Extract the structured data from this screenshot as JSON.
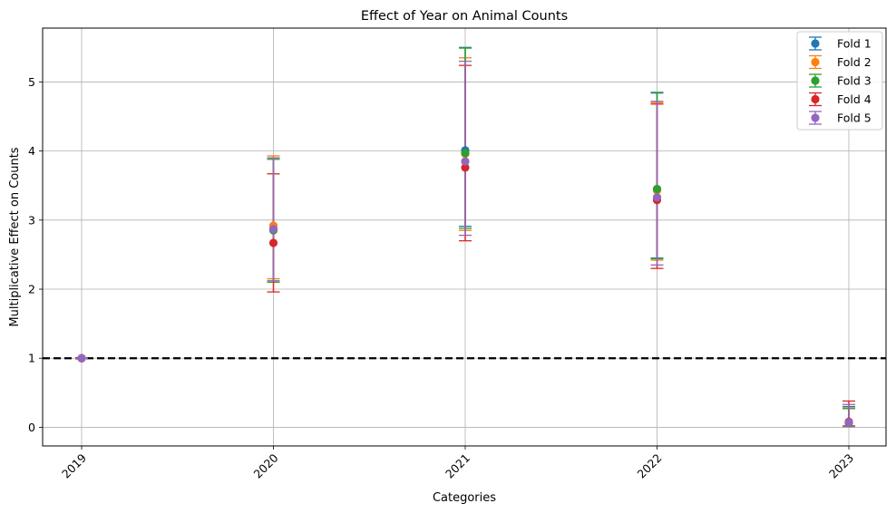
{
  "chart_data": {
    "type": "scatter",
    "title": "Effect of Year on Animal Counts",
    "xlabel": "Categories",
    "ylabel": "Multiplicative Effect on Counts",
    "categories": [
      "2019",
      "2020",
      "2021",
      "2022",
      "2023"
    ],
    "ylim": [
      -0.27,
      5.78
    ],
    "yticks": [
      0,
      1,
      2,
      3,
      4,
      5
    ],
    "grid": true,
    "legend_position": "top-right",
    "reference_line": {
      "y": 1,
      "style": "dashed",
      "color": "#000000"
    },
    "series": [
      {
        "name": "Fold 1",
        "color": "#1f77b4",
        "values": [
          1.0,
          2.87,
          4.01,
          3.45,
          0.07
        ],
        "lower": [
          1.0,
          2.12,
          2.91,
          2.45,
          0.01
        ],
        "upper": [
          1.0,
          3.9,
          5.5,
          4.84,
          0.3
        ]
      },
      {
        "name": "Fold 2",
        "color": "#ff7f0e",
        "values": [
          1.0,
          2.92,
          3.96,
          3.43,
          0.06
        ],
        "lower": [
          1.0,
          2.15,
          2.85,
          2.42,
          0.01
        ],
        "upper": [
          1.0,
          3.93,
          5.35,
          4.7,
          0.28
        ]
      },
      {
        "name": "Fold 3",
        "color": "#2ca02c",
        "values": [
          1.0,
          2.85,
          3.97,
          3.45,
          0.06
        ],
        "lower": [
          1.0,
          2.1,
          2.88,
          2.44,
          0.01
        ],
        "upper": [
          1.0,
          3.88,
          5.49,
          4.85,
          0.27
        ]
      },
      {
        "name": "Fold 4",
        "color": "#d62728",
        "values": [
          1.0,
          2.67,
          3.76,
          3.29,
          0.08
        ],
        "lower": [
          1.0,
          1.96,
          2.7,
          2.3,
          0.02
        ],
        "upper": [
          1.0,
          3.67,
          5.24,
          4.68,
          0.38
        ]
      },
      {
        "name": "Fold 5",
        "color": "#9467bd",
        "values": [
          1.0,
          2.87,
          3.85,
          3.33,
          0.07
        ],
        "lower": [
          1.0,
          2.12,
          2.78,
          2.35,
          0.01
        ],
        "upper": [
          1.0,
          3.9,
          5.3,
          4.72,
          0.33
        ]
      }
    ]
  }
}
